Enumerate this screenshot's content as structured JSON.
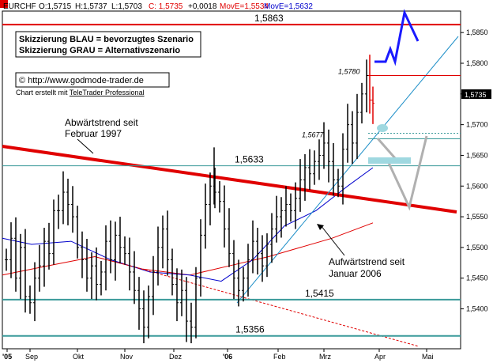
{
  "header": {
    "symbol": "EURCHF",
    "open": "O:1,5715",
    "high": "H:1,5737",
    "low": "L:1,5703",
    "close": "C: 1,5735",
    "change": "+0,0018",
    "ma1": "MovE=1,5534",
    "ma2": "MovE=1,5632"
  },
  "legend_box": {
    "line1": "Skizzierung BLAU = bevorzugtes Szenario",
    "line2": "Skizzierung GRAU = Alternativszenario"
  },
  "copyright": "© http://www.godmode-trader.de",
  "credit_prefix": "Chart erstellt mit ",
  "credit_link": "TeleTrader Professional",
  "chart_data": {
    "type": "line",
    "title": "",
    "series": [
      {
        "type": "ohlc",
        "color": "#000000"
      }
    ],
    "ylim": [
      1.5335,
      1.5885
    ],
    "x_categories": [
      "'05",
      "Sep",
      "Okt",
      "Nov",
      "Dez",
      "'06",
      "Feb",
      "Mrz",
      "Apr",
      "Mai"
    ],
    "y_ticks": [
      "1,5850",
      "1,5800",
      "1,5750",
      "1,5700",
      "1,5650",
      "1,5600",
      "1,5550",
      "1,5500",
      "1,5450",
      "1,5400"
    ],
    "current_value": "1,5735",
    "levels": [
      {
        "value": 1.5863,
        "label": "1,5863",
        "color": "#e00000"
      },
      {
        "value": 1.578,
        "label": "1,5780",
        "color": "#e00000"
      },
      {
        "value": 1.5677,
        "label": "1,5677",
        "color": "#3a9a9a"
      },
      {
        "value": 1.5633,
        "label": "1,5633",
        "color": "#3a9a9a"
      },
      {
        "value": 1.5415,
        "label": "1,5415",
        "color": "#3a9a9a"
      },
      {
        "value": 1.5356,
        "label": "1,5356",
        "color": "#3a9a9a"
      }
    ],
    "annotations": [
      {
        "text": "Abwärtstrend seit"
      },
      {
        "text": "Februar 1997"
      },
      {
        "text": "Aufwärtstrend seit"
      },
      {
        "text": "Januar 2006"
      }
    ],
    "scenario_colors": {
      "preferred": "#1a1aff",
      "alternative": "#b0b0b0"
    },
    "moving_average_colors": [
      "#e00000",
      "#0000cc"
    ]
  }
}
